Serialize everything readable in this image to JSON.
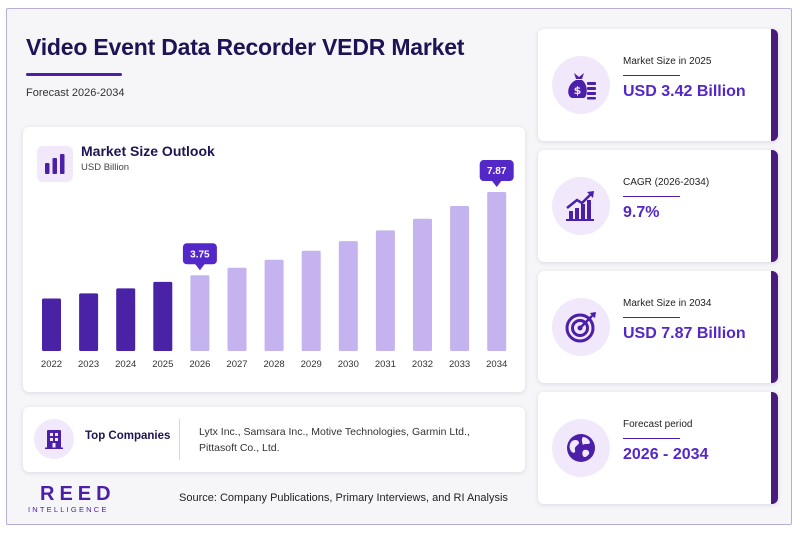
{
  "header": {
    "title": "Video Event Data Recorder VEDR Market",
    "subtitle": "Forecast 2026-2034"
  },
  "chart_card": {
    "title": "Market Size Outlook",
    "unit": "USD Billion"
  },
  "chart_data": {
    "type": "bar",
    "title": "Market Size Outlook",
    "ylabel": "USD Billion",
    "categories": [
      "2022",
      "2023",
      "2024",
      "2025",
      "2026",
      "2027",
      "2028",
      "2029",
      "2030",
      "2031",
      "2032",
      "2033",
      "2034"
    ],
    "values": [
      2.6,
      2.85,
      3.1,
      3.42,
      3.75,
      4.12,
      4.52,
      4.96,
      5.44,
      5.97,
      6.55,
      7.18,
      7.87
    ],
    "highlighted": [
      {
        "category": "2026",
        "label": "3.75"
      },
      {
        "category": "2034",
        "label": "7.87"
      }
    ],
    "historical_color": "#4a22a6",
    "forecast_color": "#c4b3ee",
    "ylim": [
      0,
      8
    ],
    "grid": false,
    "legend": "none"
  },
  "companies": {
    "label": "Top Companies",
    "list": "Lytx Inc., Samsara Inc., Motive Technologies, Garmin Ltd., Pittasoft Co., Ltd.",
    "icon": "building-icon"
  },
  "stats": [
    {
      "label": "Market Size in 2025",
      "value": "USD 3.42 Billion",
      "icon": "money-bag-icon"
    },
    {
      "label": "CAGR (2026-2034)",
      "value": "9.7%",
      "icon": "growth-chart-icon"
    },
    {
      "label": "Market Size in 2034",
      "value": "USD 7.87 Billion",
      "icon": "target-icon"
    },
    {
      "label": "Forecast period",
      "value": "2026 - 2034",
      "icon": "globe-icon"
    }
  ],
  "footer": {
    "logo_main": "REED",
    "logo_sub": "INTELLIGENCE",
    "source": "Source: Company Publications, Primary Interviews, and RI Analysis"
  },
  "colors": {
    "accent": "#4b1fa8",
    "title": "#1c1454",
    "stat_value": "#5427c8",
    "card_edge": "#4a1a7c",
    "icon_bg": "#f1e9fb"
  }
}
